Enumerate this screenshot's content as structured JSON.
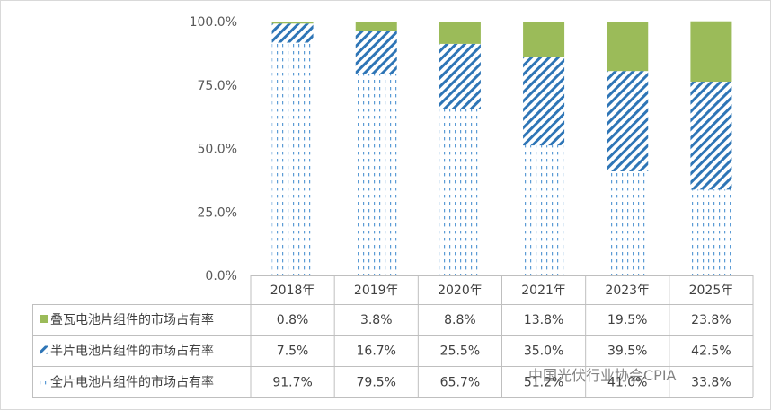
{
  "chart_data": {
    "type": "bar",
    "stacked": true,
    "percent": true,
    "categories": [
      "2018年",
      "2019年",
      "2020年",
      "2021年",
      "2023年",
      "2025年"
    ],
    "series": [
      {
        "name": "全片电池片组件的市场占有率",
        "values": [
          91.7,
          79.5,
          65.7,
          51.2,
          41.0,
          33.8
        ],
        "labels": [
          "91.7%",
          "79.5%",
          "65.7%",
          "51.2%",
          "41.0%",
          "33.8%"
        ],
        "pattern": "dotted",
        "color": "#5b9bd5"
      },
      {
        "name": "半片电池片组件的市场占有率",
        "values": [
          7.5,
          16.7,
          25.5,
          35.0,
          39.5,
          42.5
        ],
        "labels": [
          "7.5%",
          "16.7%",
          "25.5%",
          "35.0%",
          "39.5%",
          "42.5%"
        ],
        "pattern": "diagonal",
        "color": "#2e75b6"
      },
      {
        "name": "叠瓦电池片组件的市场占有率",
        "values": [
          0.8,
          3.8,
          8.8,
          13.8,
          19.5,
          23.8
        ],
        "labels": [
          "0.8%",
          "3.8%",
          "8.8%",
          "13.8%",
          "19.5%",
          "23.8%"
        ],
        "pattern": "solid",
        "color": "#9bbb59"
      }
    ],
    "yticks": [
      "0.0%",
      "25.0%",
      "50.0%",
      "75.0%",
      "100.0%"
    ],
    "ylim": [
      0,
      100
    ],
    "grid": false,
    "legend": "data-table"
  },
  "watermark": "中国光伏行业协会CPIA"
}
